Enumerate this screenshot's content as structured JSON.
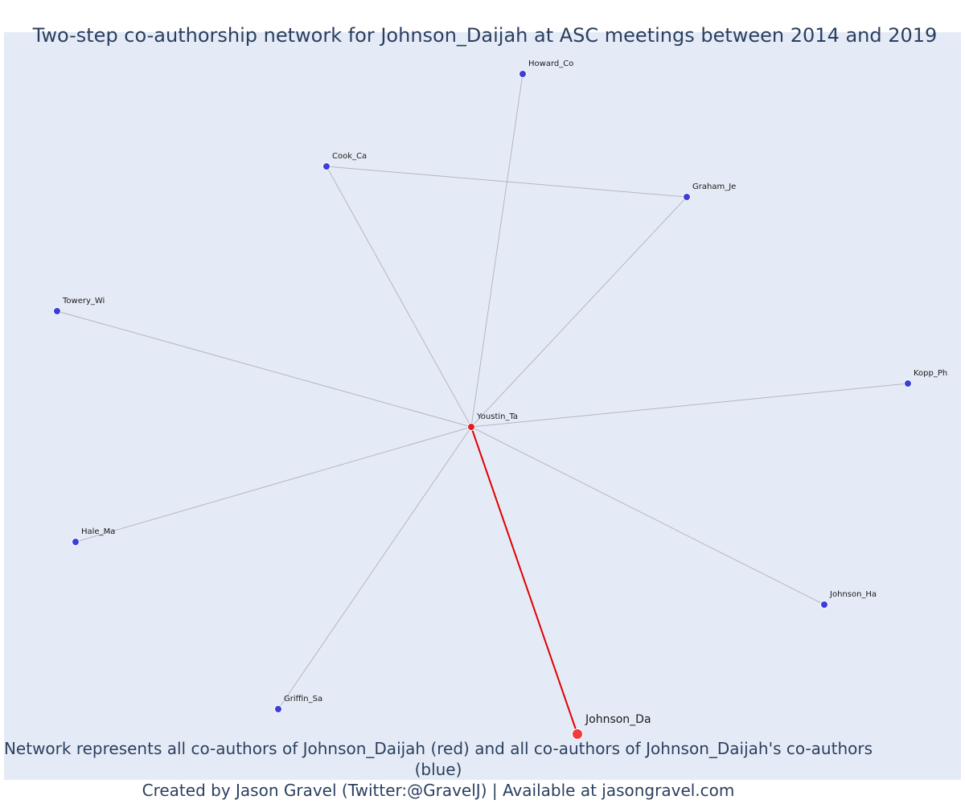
{
  "title": "Two-step co-authorship network for Johnson_Daijah at ASC meetings between 2014 and 2019",
  "footer": {
    "line1": "Network represents all co-authors of Johnson_Daijah (red) and all co-authors of Johnson_Daijah's co-authors (blue)",
    "line2": "Created by Jason Gravel (Twitter:@GravelJ) | Available at jasongravel.com"
  },
  "colors": {
    "background": "#e5ebf6",
    "focal_node": "#ef3b3b",
    "first_step_node": "#e02020",
    "second_step_node": "#3b3fd9",
    "focal_edge": "#e00000",
    "edge": "#b3b6c4"
  },
  "nodes": [
    {
      "id": "Johnson_Da",
      "label": "Johnson_Da",
      "role": "focal"
    },
    {
      "id": "Youstin_Ta",
      "label": "Youstin_Ta",
      "role": "coauthor"
    },
    {
      "id": "Howard_Co",
      "label": "Howard_Co",
      "role": "second"
    },
    {
      "id": "Cook_Ca",
      "label": "Cook_Ca",
      "role": "second"
    },
    {
      "id": "Graham_Je",
      "label": "Graham_Je",
      "role": "second"
    },
    {
      "id": "Towery_Wi",
      "label": "Towery_Wi",
      "role": "second"
    },
    {
      "id": "Kopp_Ph",
      "label": "Kopp_Ph",
      "role": "second"
    },
    {
      "id": "Hale_Ma",
      "label": "Hale_Ma",
      "role": "second"
    },
    {
      "id": "Johnson_Ha",
      "label": "Johnson_Ha",
      "role": "second"
    },
    {
      "id": "Griffin_Sa",
      "label": "Griffin_Sa",
      "role": "second"
    }
  ],
  "edges": [
    [
      "Johnson_Da",
      "Youstin_Ta"
    ],
    [
      "Youstin_Ta",
      "Howard_Co"
    ],
    [
      "Youstin_Ta",
      "Cook_Ca"
    ],
    [
      "Youstin_Ta",
      "Graham_Je"
    ],
    [
      "Cook_Ca",
      "Graham_Je"
    ],
    [
      "Youstin_Ta",
      "Towery_Wi"
    ],
    [
      "Youstin_Ta",
      "Kopp_Ph"
    ],
    [
      "Youstin_Ta",
      "Hale_Ma"
    ],
    [
      "Youstin_Ta",
      "Johnson_Ha"
    ],
    [
      "Youstin_Ta",
      "Griffin_Sa"
    ]
  ]
}
